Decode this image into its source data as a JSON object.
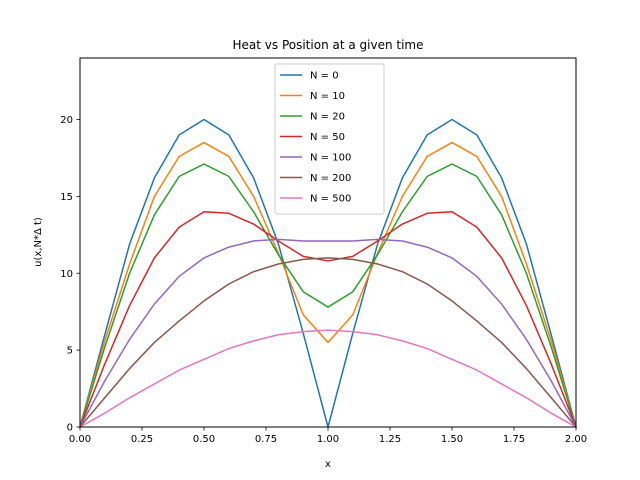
{
  "chart_data": {
    "type": "line",
    "title": "Heat vs Position at a given time",
    "xlabel": "x",
    "ylabel": "u(x,N*Δ t)",
    "xlim": [
      0,
      2
    ],
    "ylim": [
      0,
      24
    ],
    "grid": false,
    "legend_position": "top-center",
    "x": [
      0.0,
      0.1,
      0.2,
      0.3,
      0.4,
      0.5,
      0.6,
      0.7,
      0.8,
      0.9,
      1.0,
      1.1,
      1.2,
      1.3,
      1.4,
      1.5,
      1.6,
      1.7,
      1.8,
      1.9,
      2.0
    ],
    "xticks": [
      "0.00",
      "0.25",
      "0.50",
      "0.75",
      "1.00",
      "1.25",
      "1.50",
      "1.75",
      "2.00"
    ],
    "yticks": [
      "0",
      "5",
      "10",
      "15",
      "20"
    ],
    "series": [
      {
        "name": "N = 0",
        "color": "#1f77b4",
        "values": [
          0,
          6.0,
          11.9,
          16.2,
          19.0,
          20.0,
          19.0,
          16.2,
          11.9,
          6.1,
          0,
          6.1,
          11.9,
          16.2,
          19.0,
          20.0,
          19.0,
          16.2,
          11.9,
          6.0,
          0
        ]
      },
      {
        "name": "N = 10",
        "color": "#ff7f0e",
        "values": [
          0,
          5.6,
          10.6,
          15.0,
          17.6,
          18.5,
          17.6,
          15.0,
          11.3,
          7.3,
          5.5,
          7.3,
          11.3,
          15.0,
          17.6,
          18.5,
          17.6,
          15.0,
          10.6,
          5.6,
          0
        ]
      },
      {
        "name": "N = 20",
        "color": "#2ca02c",
        "values": [
          0,
          5.2,
          10.0,
          13.8,
          16.3,
          17.1,
          16.3,
          14.0,
          11.2,
          8.8,
          7.8,
          8.8,
          11.2,
          14.0,
          16.3,
          17.1,
          16.3,
          13.8,
          10.0,
          5.2,
          0
        ]
      },
      {
        "name": "N = 50",
        "color": "#d62728",
        "values": [
          0,
          4.1,
          7.9,
          11.0,
          13.0,
          14.0,
          13.9,
          13.2,
          12.1,
          11.1,
          10.8,
          11.1,
          12.1,
          13.2,
          13.9,
          14.0,
          13.0,
          11.0,
          7.9,
          4.1,
          0
        ]
      },
      {
        "name": "N = 100",
        "color": "#9467bd",
        "values": [
          0,
          3.0,
          5.7,
          8.0,
          9.8,
          11.0,
          11.7,
          12.1,
          12.2,
          12.1,
          12.1,
          12.1,
          12.2,
          12.1,
          11.7,
          11.0,
          9.8,
          8.0,
          5.7,
          3.0,
          0
        ]
      },
      {
        "name": "N = 200",
        "color": "#8c564b",
        "values": [
          0,
          1.9,
          3.8,
          5.5,
          6.9,
          8.2,
          9.3,
          10.1,
          10.6,
          10.9,
          11.0,
          10.9,
          10.6,
          10.1,
          9.3,
          8.2,
          6.9,
          5.5,
          3.8,
          1.9,
          0
        ]
      },
      {
        "name": "N = 500",
        "color": "#e377c2",
        "values": [
          0,
          0.9,
          1.9,
          2.8,
          3.7,
          4.4,
          5.1,
          5.6,
          6.0,
          6.2,
          6.3,
          6.2,
          6.0,
          5.6,
          5.1,
          4.4,
          3.7,
          2.8,
          1.9,
          0.9,
          0
        ]
      }
    ]
  }
}
